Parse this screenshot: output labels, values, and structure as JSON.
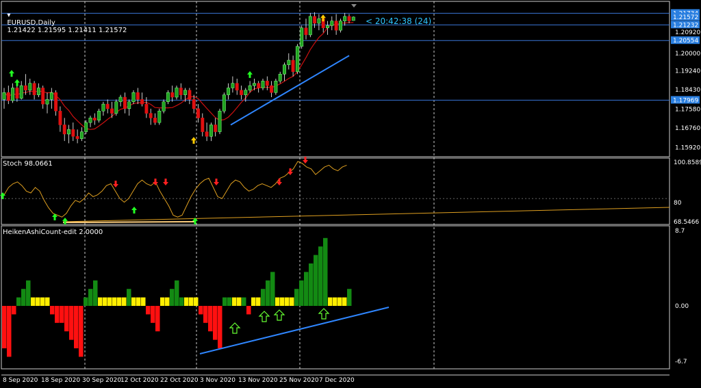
{
  "header": {
    "symbol": "EURUSD,Daily",
    "ohlc": "1.21422 1.21595 1.21411 1.21572",
    "countdown": "< 20:42:38 (24)"
  },
  "panes": {
    "stoch_title": "Stoch 98.0661",
    "heiken_title": "HeikenAshiCount-edit 2.0000"
  },
  "price_axis": {
    "ticks": [
      "1.20920",
      "1.20000",
      "1.19240",
      "1.18430",
      "1.17580",
      "1.16760",
      "1.15920"
    ],
    "labels": [
      {
        "text": "1.21734",
        "value": 1.21734
      },
      {
        "text": "1.21572",
        "value": 1.21572
      },
      {
        "text": "1.21232",
        "value": 1.21232
      },
      {
        "text": "1.20554",
        "value": 1.20554
      },
      {
        "text": "1.17969",
        "value": 1.17969
      }
    ]
  },
  "stoch_axis": {
    "ticks": [
      "100.8589",
      "80",
      "68.5466"
    ]
  },
  "heiken_axis": {
    "ticks": [
      "8.7",
      "0.00",
      "-6.7"
    ]
  },
  "time_axis": [
    "8 Sep 2020",
    "18 Sep 2020",
    "30 Sep 2020",
    "12 Oct 2020",
    "22 Oct 2020",
    "3 Nov 2020",
    "13 Nov 2020",
    "25 Nov 2020",
    "7 Dec 2020"
  ],
  "colors": {
    "bull": "#1fa31f",
    "bear": "#e01010",
    "ma": "#cc1010",
    "trend": "#2f86ff",
    "hline": "#3a76d8",
    "stoch": "#e0a020",
    "hist_green": "#138a13",
    "hist_red": "#ff1010",
    "hist_yellow": "#ffee00",
    "grid": "#ffffff",
    "countdown": "#2ec5ff"
  },
  "chart_data": [
    {
      "type": "candlestick",
      "title": "EURUSD,Daily",
      "ylim": [
        1.1552,
        1.2225
      ],
      "horizontal_lines": [
        1.21734,
        1.21232,
        1.20554,
        1.17969
      ],
      "candles": [
        [
          1.18,
          1.185,
          1.176,
          1.183
        ],
        [
          1.183,
          1.186,
          1.178,
          1.1795
        ],
        [
          1.1795,
          1.187,
          1.1785,
          1.185
        ],
        [
          1.185,
          1.188,
          1.179,
          1.1805
        ],
        [
          1.1805,
          1.188,
          1.18,
          1.186
        ],
        [
          1.186,
          1.191,
          1.182,
          1.184
        ],
        [
          1.184,
          1.189,
          1.182,
          1.187
        ],
        [
          1.187,
          1.188,
          1.18,
          1.182
        ],
        [
          1.182,
          1.187,
          1.181,
          1.185
        ],
        [
          1.185,
          1.186,
          1.176,
          1.178
        ],
        [
          1.178,
          1.183,
          1.174,
          1.18
        ],
        [
          1.18,
          1.185,
          1.176,
          1.183
        ],
        [
          1.183,
          1.184,
          1.173,
          1.175
        ],
        [
          1.175,
          1.177,
          1.166,
          1.169
        ],
        [
          1.169,
          1.172,
          1.162,
          1.165
        ],
        [
          1.165,
          1.169,
          1.161,
          1.167
        ],
        [
          1.167,
          1.17,
          1.162,
          1.164
        ],
        [
          1.164,
          1.167,
          1.161,
          1.163
        ],
        [
          1.163,
          1.168,
          1.162,
          1.166
        ],
        [
          1.166,
          1.171,
          1.165,
          1.17
        ],
        [
          1.17,
          1.173,
          1.168,
          1.172
        ],
        [
          1.172,
          1.174,
          1.169,
          1.171
        ],
        [
          1.171,
          1.176,
          1.17,
          1.175
        ],
        [
          1.175,
          1.179,
          1.173,
          1.178
        ],
        [
          1.178,
          1.18,
          1.174,
          1.176
        ],
        [
          1.176,
          1.179,
          1.172,
          1.174
        ],
        [
          1.174,
          1.18,
          1.173,
          1.179
        ],
        [
          1.179,
          1.182,
          1.177,
          1.181
        ],
        [
          1.181,
          1.183,
          1.174,
          1.176
        ],
        [
          1.176,
          1.18,
          1.173,
          1.179
        ],
        [
          1.179,
          1.184,
          1.178,
          1.183
        ],
        [
          1.183,
          1.185,
          1.178,
          1.18
        ],
        [
          1.18,
          1.183,
          1.177,
          1.178
        ],
        [
          1.178,
          1.181,
          1.172,
          1.174
        ],
        [
          1.174,
          1.176,
          1.169,
          1.172
        ],
        [
          1.172,
          1.174,
          1.169,
          1.17
        ],
        [
          1.17,
          1.176,
          1.169,
          1.175
        ],
        [
          1.175,
          1.18,
          1.174,
          1.179
        ],
        [
          1.179,
          1.184,
          1.178,
          1.183
        ],
        [
          1.183,
          1.186,
          1.179,
          1.181
        ],
        [
          1.181,
          1.186,
          1.18,
          1.185
        ],
        [
          1.185,
          1.187,
          1.18,
          1.182
        ],
        [
          1.182,
          1.185,
          1.179,
          1.184
        ],
        [
          1.184,
          1.185,
          1.178,
          1.18
        ],
        [
          1.18,
          1.182,
          1.174,
          1.176
        ],
        [
          1.176,
          1.178,
          1.17,
          1.172
        ],
        [
          1.172,
          1.174,
          1.164,
          1.166
        ],
        [
          1.166,
          1.17,
          1.162,
          1.164
        ],
        [
          1.164,
          1.17,
          1.162,
          1.169
        ],
        [
          1.169,
          1.172,
          1.164,
          1.166
        ],
        [
          1.166,
          1.176,
          1.165,
          1.175
        ],
        [
          1.175,
          1.183,
          1.174,
          1.182
        ],
        [
          1.182,
          1.187,
          1.18,
          1.185
        ],
        [
          1.185,
          1.19,
          1.183,
          1.187
        ],
        [
          1.187,
          1.189,
          1.182,
          1.184
        ],
        [
          1.184,
          1.186,
          1.18,
          1.182
        ],
        [
          1.182,
          1.185,
          1.179,
          1.184
        ],
        [
          1.184,
          1.188,
          1.183,
          1.186
        ],
        [
          1.186,
          1.189,
          1.184,
          1.187
        ],
        [
          1.187,
          1.188,
          1.183,
          1.185
        ],
        [
          1.185,
          1.189,
          1.184,
          1.188
        ],
        [
          1.188,
          1.19,
          1.184,
          1.186
        ],
        [
          1.186,
          1.188,
          1.181,
          1.183
        ],
        [
          1.183,
          1.189,
          1.182,
          1.188
        ],
        [
          1.188,
          1.192,
          1.187,
          1.191
        ],
        [
          1.191,
          1.196,
          1.188,
          1.195
        ],
        [
          1.195,
          1.2,
          1.193,
          1.197
        ],
        [
          1.197,
          1.199,
          1.19,
          1.192
        ],
        [
          1.192,
          1.204,
          1.191,
          1.203
        ],
        [
          1.203,
          1.212,
          1.202,
          1.211
        ],
        [
          1.211,
          1.215,
          1.206,
          1.208
        ],
        [
          1.208,
          1.2175,
          1.207,
          1.216
        ],
        [
          1.216,
          1.2178,
          1.211,
          1.213
        ],
        [
          1.213,
          1.217,
          1.21,
          1.215
        ],
        [
          1.215,
          1.2165,
          1.209,
          1.211
        ],
        [
          1.211,
          1.214,
          1.208,
          1.212
        ],
        [
          1.212,
          1.216,
          1.21,
          1.214
        ],
        [
          1.214,
          1.217,
          1.208,
          1.21
        ],
        [
          1.21,
          1.215,
          1.209,
          1.214
        ],
        [
          1.214,
          1.2175,
          1.212,
          1.216
        ],
        [
          1.216,
          1.217,
          1.213,
          1.214
        ],
        [
          1.2142,
          1.21595,
          1.21411,
          1.21572
        ]
      ],
      "trendline": [
        [
          1.178,
          1.169
        ],
        [
          1.176,
          1.199
        ]
      ]
    },
    {
      "type": "line",
      "title": "Stoch 98.0661",
      "ylim": [
        68.5466,
        100.8589
      ],
      "levels": [
        80
      ],
      "values": [
        82,
        86,
        88,
        89,
        87,
        84,
        83,
        86,
        84,
        79,
        75,
        72,
        71,
        70,
        72,
        76,
        79,
        78,
        80,
        83,
        81,
        82,
        84,
        87,
        88,
        84,
        80,
        78,
        80,
        84,
        88,
        90,
        88,
        87,
        89,
        84,
        80,
        76,
        71,
        70,
        71,
        76,
        81,
        85,
        88,
        90,
        91,
        86,
        81,
        80,
        84,
        88,
        90,
        89,
        86,
        84,
        85,
        87,
        88,
        87,
        86,
        88,
        91,
        92,
        94,
        96,
        100,
        99,
        97,
        96,
        93,
        95,
        97,
        98,
        96,
        95,
        97,
        98
      ]
    },
    {
      "type": "bar",
      "title": "HeikenAshiCount-edit 2.0000",
      "ylim": [
        -6.7,
        8.7
      ],
      "values": [
        -5,
        -6,
        -1,
        1,
        2,
        3,
        1,
        1,
        1,
        1,
        -1,
        -2,
        -2,
        -3,
        -4,
        -5,
        -6,
        1,
        2,
        3,
        1,
        1,
        1,
        1,
        1,
        1,
        2,
        1,
        1,
        1,
        -1,
        -2,
        -3,
        1,
        1,
        2,
        3,
        1,
        1,
        1,
        1,
        -1,
        -2,
        -3,
        -4,
        -5,
        1,
        1,
        2,
        3,
        1,
        -1,
        1,
        1,
        2,
        3,
        4,
        1,
        1,
        1,
        1,
        2,
        3,
        4,
        5,
        6,
        7,
        8,
        1,
        1,
        1,
        1,
        2
      ],
      "yellow_bars": [
        6,
        7,
        8,
        9,
        20,
        21,
        22,
        23,
        24,
        25,
        27,
        28,
        29,
        33,
        34,
        38,
        39,
        40,
        48,
        49,
        52,
        53,
        57,
        58,
        59,
        60,
        68,
        69,
        70,
        71
      ]
    }
  ]
}
